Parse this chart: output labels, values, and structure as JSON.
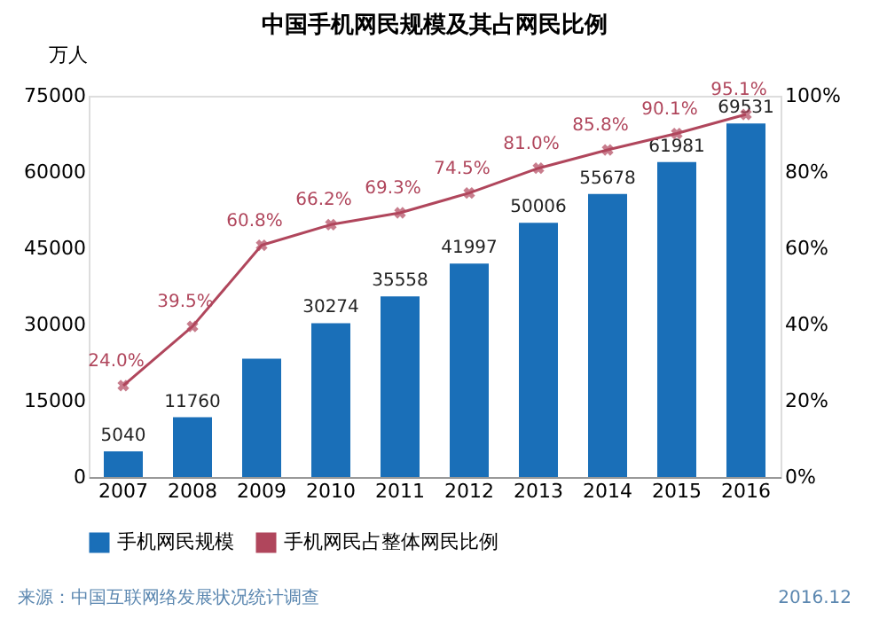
{
  "chart_data": {
    "type": "bar",
    "title": "中国手机网民规模及其占网民比例",
    "ylabel": "万人",
    "categories": [
      "2007",
      "2008",
      "2009",
      "2010",
      "2011",
      "2012",
      "2013",
      "2014",
      "2015",
      "2016"
    ],
    "series": [
      {
        "name": "手机网民规模",
        "color": "#1a6fb8",
        "values": [
          5040,
          11760,
          23300,
          30274,
          35558,
          41997,
          50006,
          55678,
          61981,
          69531
        ],
        "value_labels": [
          "5040",
          "11760",
          null,
          "30274",
          "35558",
          "41997",
          "50006",
          "55678",
          "61981",
          "69531"
        ]
      },
      {
        "type": "line",
        "axis": "y2",
        "name": "手机网民占整体网民比例",
        "color": "#b0465c",
        "values": [
          24.0,
          39.5,
          60.8,
          66.2,
          69.3,
          74.5,
          81.0,
          85.8,
          90.1,
          95.1
        ],
        "value_labels": [
          "24.0%",
          "39.5%",
          "60.8%",
          "66.2%",
          "69.3%",
          "74.5%",
          "81.0%",
          "85.8%",
          "90.1%",
          "95.1%"
        ]
      }
    ],
    "ylim": [
      0,
      75000
    ],
    "yticks": [
      0,
      15000,
      30000,
      45000,
      60000,
      75000
    ],
    "y2lim": [
      0,
      100
    ],
    "y2ticks": [
      {
        "value": 0,
        "label": "0%"
      },
      {
        "value": 20,
        "label": "20%"
      },
      {
        "value": 40,
        "label": "40%"
      },
      {
        "value": 60,
        "label": "60%"
      },
      {
        "value": 80,
        "label": "80%"
      },
      {
        "value": 100,
        "label": "100%"
      }
    ],
    "marker": "cross",
    "legend": "bottom",
    "grid": false,
    "annotations": [
      "来源：中国互联网络发展状况统计调查",
      "2016.12"
    ]
  }
}
